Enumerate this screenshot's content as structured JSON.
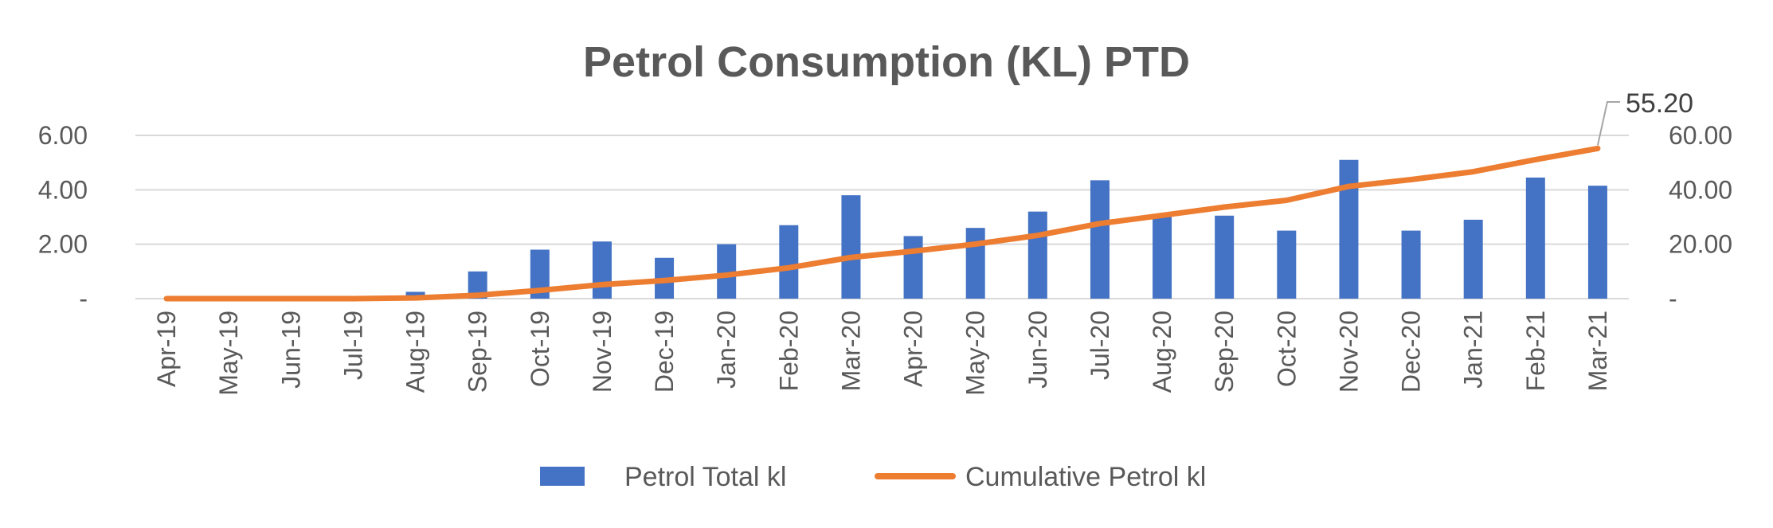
{
  "chart_data": {
    "type": "bar",
    "title": "Petrol Consumption (KL) PTD",
    "categories": [
      "Apr-19",
      "May-19",
      "Jun-19",
      "Jul-19",
      "Aug-19",
      "Sep-19",
      "Oct-19",
      "Nov-19",
      "Dec-19",
      "Jan-20",
      "Feb-20",
      "Mar-20",
      "Apr-20",
      "May-20",
      "Jun-20",
      "Jul-20",
      "Aug-20",
      "Sep-20",
      "Oct-20",
      "Nov-20",
      "Dec-20",
      "Jan-21",
      "Feb-21",
      "Mar-21"
    ],
    "series": [
      {
        "name": "Petrol Total kl",
        "type": "bar",
        "axis": "left",
        "color": "#4472C4",
        "values": [
          0,
          0,
          0,
          0,
          0.25,
          1.0,
          1.8,
          2.1,
          1.5,
          2.0,
          2.7,
          3.8,
          2.3,
          2.6,
          3.2,
          4.35,
          3.0,
          3.05,
          2.5,
          5.1,
          2.5,
          2.9,
          4.45,
          4.15
        ]
      },
      {
        "name": "Cumulative Petrol kl",
        "type": "line",
        "axis": "right",
        "color": "#ED7D31",
        "values": [
          0,
          0,
          0,
          0,
          0.25,
          1.25,
          3.05,
          5.15,
          6.65,
          8.65,
          11.35,
          15.15,
          17.45,
          20.05,
          23.25,
          27.6,
          30.6,
          33.65,
          36.15,
          41.25,
          43.75,
          46.65,
          51.1,
          55.2
        ]
      }
    ],
    "y_left": {
      "min": 0,
      "max": 6,
      "ticks": [
        "-",
        "2.00",
        "4.00",
        "6.00"
      ],
      "tick_values": [
        0,
        2,
        4,
        6
      ]
    },
    "y_right": {
      "min": 0,
      "max": 60,
      "ticks": [
        "-",
        "20.00",
        "40.00",
        "60.00"
      ],
      "tick_values": [
        0,
        20,
        40,
        60
      ]
    },
    "annotation": {
      "series": "Cumulative Petrol kl",
      "index": 23,
      "text": "55.20"
    },
    "grid": true,
    "legend": "bottom-center"
  }
}
